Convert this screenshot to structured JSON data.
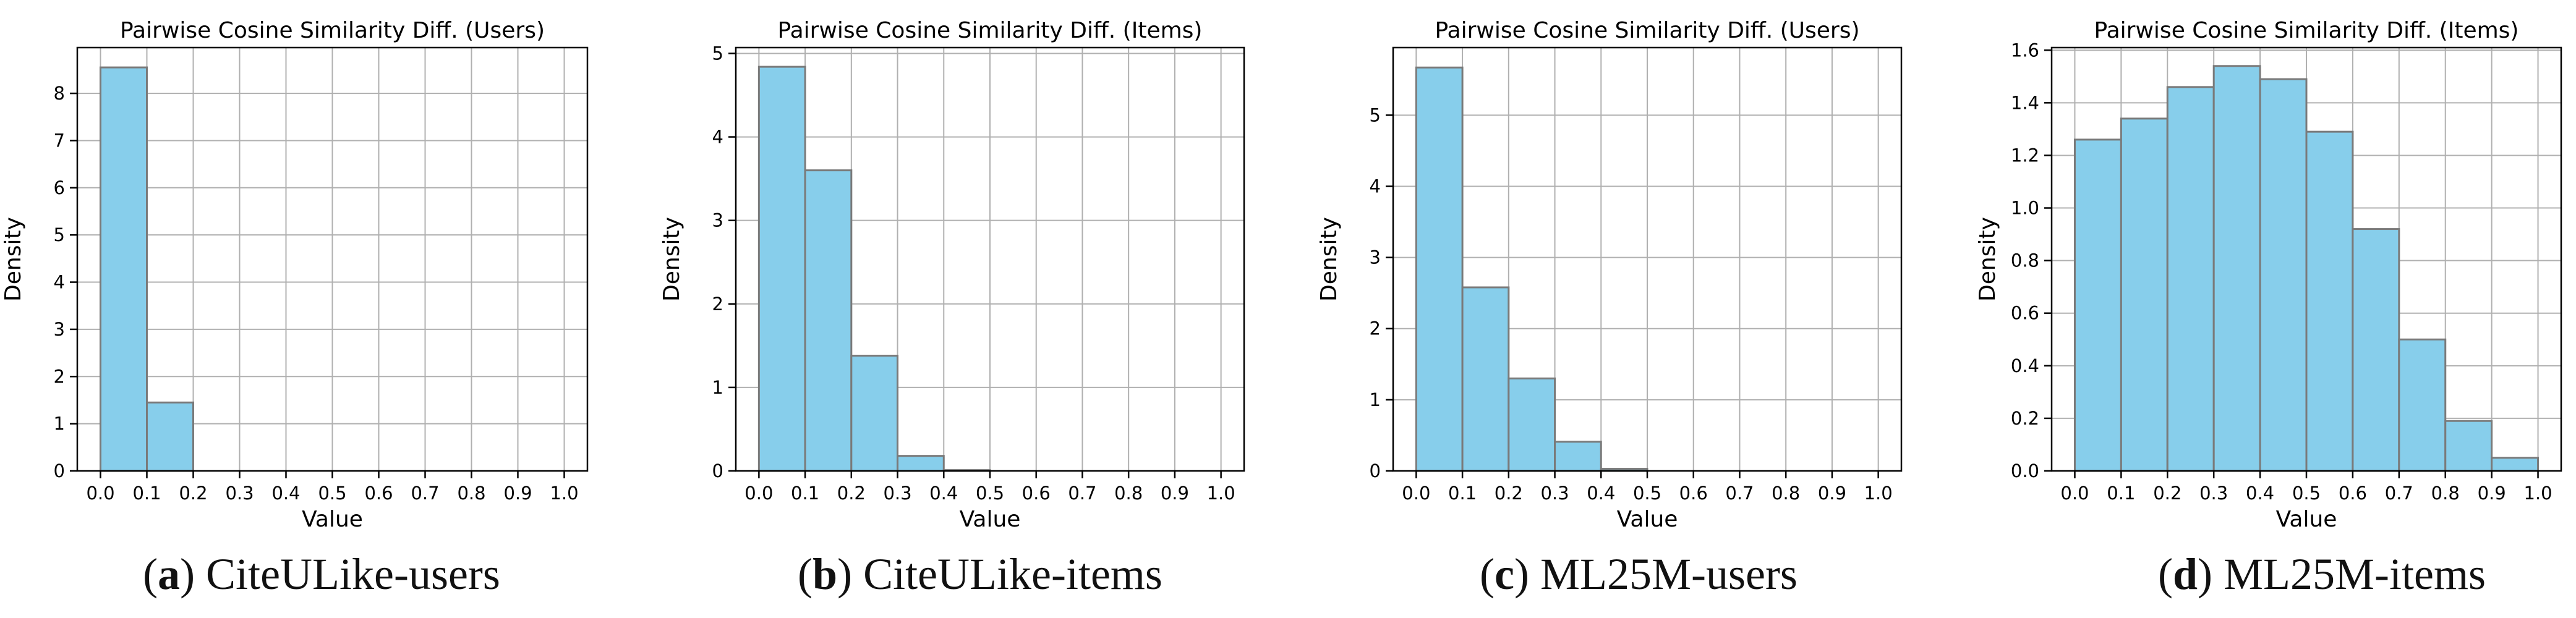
{
  "figure": {
    "subfigures": [
      {
        "letter": "a",
        "caption": "CiteULike-users"
      },
      {
        "letter": "b",
        "caption": "CiteULike-items"
      },
      {
        "letter": "c",
        "caption": "ML25M-users"
      },
      {
        "letter": "d",
        "caption": "ML25M-items"
      }
    ]
  },
  "colors": {
    "bar_fill": "#87CEEB",
    "bar_edge": "#7a7a7a",
    "grid": "#b0b0b0",
    "axis": "#000000"
  },
  "chart_data": [
    {
      "type": "bar",
      "title": "Pairwise Cosine Similarity Diff. (Users)",
      "xlabel": "Value",
      "ylabel": "Density",
      "bin_edges": [
        0.0,
        0.1,
        0.2,
        0.3,
        0.4,
        0.5,
        0.6,
        0.7,
        0.8,
        0.9,
        1.0
      ],
      "values": [
        8.55,
        1.45,
        0,
        0,
        0,
        0,
        0,
        0,
        0,
        0
      ],
      "xticks": [
        "0.0",
        "0.1",
        "0.2",
        "0.3",
        "0.4",
        "0.5",
        "0.6",
        "0.7",
        "0.8",
        "0.9",
        "1.0"
      ],
      "yticks": [
        0,
        1,
        2,
        3,
        4,
        5,
        6,
        7,
        8
      ],
      "yticklabels": [
        "0",
        "1",
        "2",
        "3",
        "4",
        "5",
        "6",
        "7",
        "8"
      ],
      "xlim": [
        -0.05,
        1.05
      ],
      "ylim": [
        0,
        8.97
      ],
      "grid": true
    },
    {
      "type": "bar",
      "title": "Pairwise Cosine Similarity Diff. (Items)",
      "xlabel": "Value",
      "ylabel": "Density",
      "bin_edges": [
        0.0,
        0.1,
        0.2,
        0.3,
        0.4,
        0.5,
        0.6,
        0.7,
        0.8,
        0.9,
        1.0
      ],
      "values": [
        4.84,
        3.6,
        1.38,
        0.18,
        0.01,
        0,
        0,
        0,
        0,
        0
      ],
      "xticks": [
        "0.0",
        "0.1",
        "0.2",
        "0.3",
        "0.4",
        "0.5",
        "0.6",
        "0.7",
        "0.8",
        "0.9",
        "1.0"
      ],
      "yticks": [
        0,
        1,
        2,
        3,
        4,
        5
      ],
      "yticklabels": [
        "0",
        "1",
        "2",
        "3",
        "4",
        "5"
      ],
      "xlim": [
        -0.05,
        1.05
      ],
      "ylim": [
        0,
        5.07
      ],
      "grid": true
    },
    {
      "type": "bar",
      "title": "Pairwise Cosine Similarity Diff. (Users)",
      "xlabel": "Value",
      "ylabel": "Density",
      "bin_edges": [
        0.0,
        0.1,
        0.2,
        0.3,
        0.4,
        0.5,
        0.6,
        0.7,
        0.8,
        0.9,
        1.0
      ],
      "values": [
        5.67,
        2.58,
        1.3,
        0.41,
        0.03,
        0,
        0,
        0,
        0,
        0
      ],
      "xticks": [
        "0.0",
        "0.1",
        "0.2",
        "0.3",
        "0.4",
        "0.5",
        "0.6",
        "0.7",
        "0.8",
        "0.9",
        "1.0"
      ],
      "yticks": [
        0,
        1,
        2,
        3,
        4,
        5
      ],
      "yticklabels": [
        "0",
        "1",
        "2",
        "3",
        "4",
        "5"
      ],
      "xlim": [
        -0.05,
        1.05
      ],
      "ylim": [
        0,
        5.95
      ],
      "grid": true
    },
    {
      "type": "bar",
      "title": "Pairwise Cosine Similarity Diff. (Items)",
      "xlabel": "Value",
      "ylabel": "Density",
      "bin_edges": [
        0.0,
        0.1,
        0.2,
        0.3,
        0.4,
        0.5,
        0.6,
        0.7,
        0.8,
        0.9,
        1.0
      ],
      "values": [
        1.26,
        1.34,
        1.46,
        1.54,
        1.49,
        1.29,
        0.92,
        0.5,
        0.19,
        0.05
      ],
      "xticks": [
        "0.0",
        "0.1",
        "0.2",
        "0.3",
        "0.4",
        "0.5",
        "0.6",
        "0.7",
        "0.8",
        "0.9",
        "1.0"
      ],
      "yticks": [
        0,
        0.2,
        0.4,
        0.6,
        0.8,
        1.0,
        1.2,
        1.4,
        1.6
      ],
      "yticklabels": [
        "0.0",
        "0.2",
        "0.4",
        "0.6",
        "0.8",
        "1.0",
        "1.2",
        "1.4",
        "1.6"
      ],
      "xlim": [
        -0.05,
        1.05
      ],
      "ylim": [
        0,
        1.61
      ],
      "grid": true
    }
  ]
}
